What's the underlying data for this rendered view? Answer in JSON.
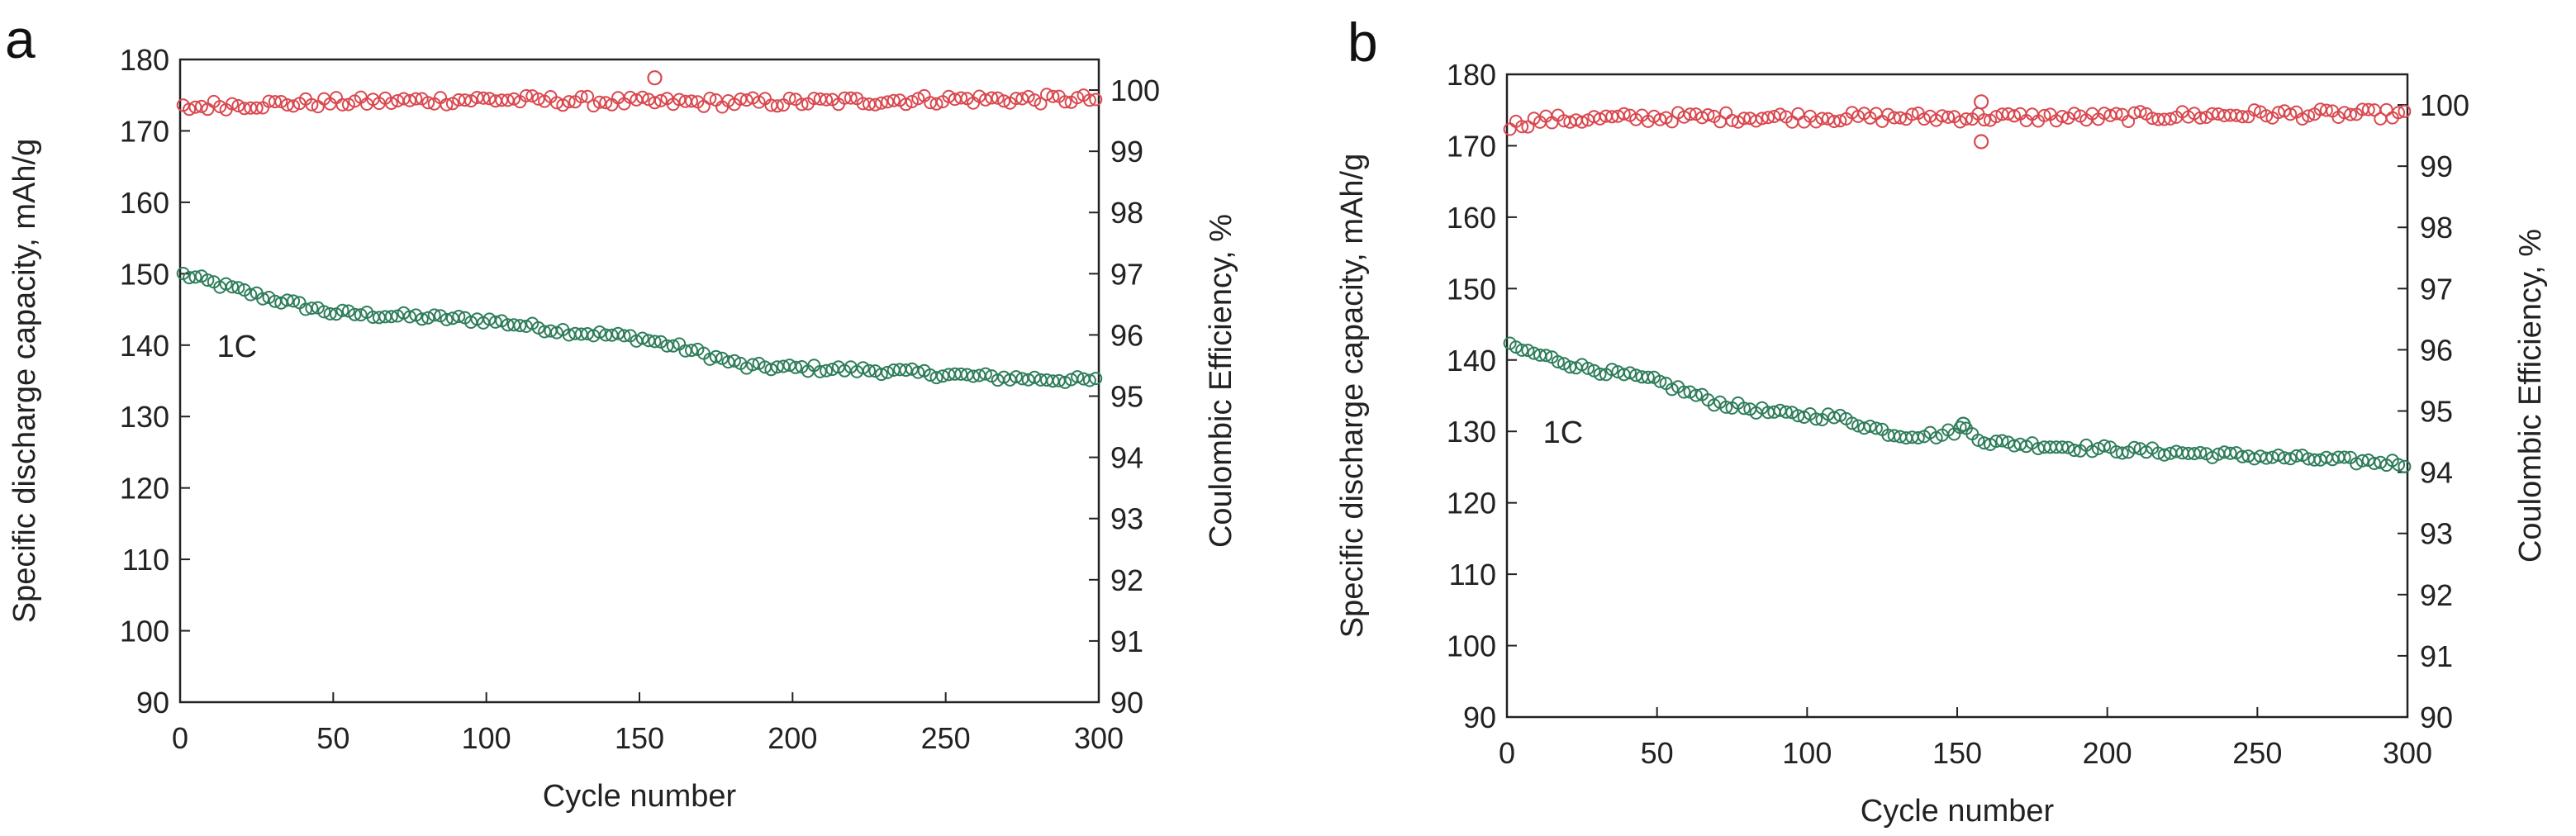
{
  "figure": {
    "panel_labels": [
      "a",
      "b"
    ]
  },
  "chart_data": [
    {
      "type": "scatter",
      "panel": "a",
      "xlabel": "Cycle number",
      "ylabel": "Specific discharge capacity, mAh/g",
      "y2label": "Coulombic Efficiency, %",
      "xlim": [
        0,
        300
      ],
      "ylim": [
        90,
        180
      ],
      "y2lim": [
        90,
        100.5
      ],
      "x_ticks": [
        "0",
        "50",
        "100",
        "150",
        "200",
        "250",
        "300"
      ],
      "y_ticks": [
        "90",
        "100",
        "110",
        "120",
        "130",
        "140",
        "150",
        "160",
        "170",
        "180"
      ],
      "y2_ticks": [
        "90",
        "91",
        "92",
        "93",
        "94",
        "95",
        "96",
        "97",
        "98",
        "99",
        "100"
      ],
      "annotations": [
        {
          "text": "1C",
          "x": 12,
          "y": 140
        }
      ],
      "colors": {
        "capacity": "#2e7d5b",
        "efficiency": "#d9484f"
      },
      "series": [
        {
          "name": "Specific discharge capacity",
          "axis": "left",
          "marker": "open-circle",
          "x": [
            0,
            25,
            50,
            75,
            100,
            125,
            150,
            165,
            185,
            225,
            265,
            300
          ],
          "y": [
            150,
            147,
            144.5,
            144,
            143.5,
            142,
            141,
            139.5,
            137,
            136.5,
            135.5,
            135
          ]
        },
        {
          "name": "Coulombic Efficiency",
          "axis": "right",
          "marker": "open-circle",
          "x": [
            0,
            10,
            50,
            100,
            155,
            200,
            250,
            300
          ],
          "y": [
            99.7,
            99.75,
            99.8,
            99.85,
            99.8,
            99.8,
            99.85,
            99.85
          ],
          "outliers": [
            {
              "x": 155,
              "y": 100.2
            }
          ]
        }
      ]
    },
    {
      "type": "scatter",
      "panel": "b",
      "xlabel": "Cycle number",
      "ylabel": "Specific discharge capacity, mAh/g",
      "y2label": "Coulombic Efficiency, %",
      "xlim": [
        0,
        300
      ],
      "ylim": [
        90,
        180
      ],
      "y2lim": [
        90,
        100.5
      ],
      "x_ticks": [
        "0",
        "50",
        "100",
        "150",
        "200",
        "250",
        "300"
      ],
      "y_ticks": [
        "90",
        "100",
        "110",
        "120",
        "130",
        "140",
        "150",
        "160",
        "170",
        "180"
      ],
      "y2_ticks": [
        "90",
        "91",
        "92",
        "93",
        "94",
        "95",
        "96",
        "97",
        "98",
        "99",
        "100"
      ],
      "annotations": [
        {
          "text": "1C",
          "x": 12,
          "y": 130
        }
      ],
      "colors": {
        "capacity": "#2e7d5b",
        "efficiency": "#d9484f"
      },
      "series": [
        {
          "name": "Specific discharge capacity",
          "axis": "left",
          "marker": "open-circle",
          "x": [
            0,
            25,
            50,
            70,
            90,
            110,
            130,
            145,
            152,
            160,
            200,
            250,
            300
          ],
          "y": [
            142,
            139,
            137,
            134,
            132.5,
            132,
            129.5,
            129.5,
            130.5,
            128.5,
            127.5,
            126.5,
            125.5
          ],
          "outliers": [
            {
              "x": 152,
              "y": 131
            }
          ]
        },
        {
          "name": "Coulombic Efficiency",
          "axis": "right",
          "marker": "open-circle",
          "x": [
            0,
            10,
            50,
            100,
            150,
            200,
            250,
            300
          ],
          "y": [
            99.65,
            99.75,
            99.8,
            99.8,
            99.8,
            99.8,
            99.85,
            99.85
          ],
          "outliers": [
            {
              "x": 158,
              "y": 99.4
            },
            {
              "x": 158,
              "y": 100.05
            }
          ]
        }
      ]
    }
  ]
}
